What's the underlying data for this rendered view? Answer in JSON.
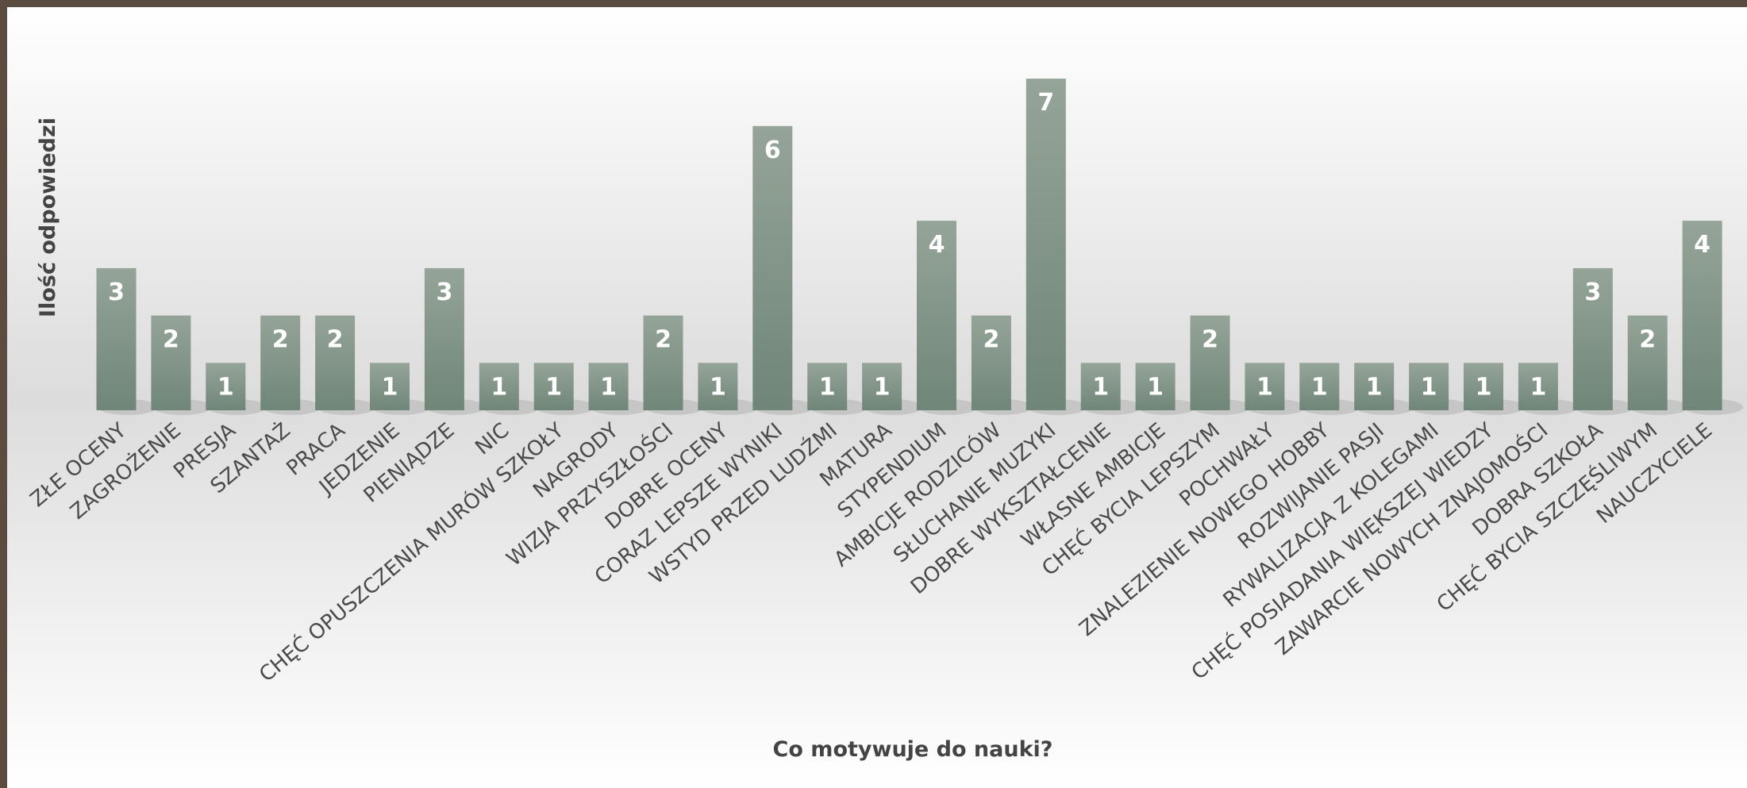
{
  "chart_data": {
    "type": "bar",
    "title": "",
    "xlabel": "Co motywuje do nauki?",
    "ylabel": "Ilość odpowiedzi",
    "ylim": [
      0,
      7
    ],
    "grid": false,
    "legend": "none",
    "colors": {
      "bar_top": "#95a498",
      "bar_bottom": "#6f8678",
      "label": "#ffffff",
      "text": "#4a4a4a"
    },
    "categories": [
      "ZŁE OCENY",
      "ZAGROŻENIE",
      "PRESJA",
      "SZANTAŻ",
      "PRACA",
      "JEDZENIE",
      "PIENIĄDZE",
      "NIC",
      "CHĘĆ OPUSZCZENIA MURÓW SZKOŁY",
      "NAGRODY",
      "WIZJA PRZYSZŁOŚCI",
      "DOBRE OCENY",
      "CORAZ LEPSZE WYNIKI",
      "WSTYD PRZED LUDŹMI",
      "MATURA",
      "STYPENDIUM",
      "AMBICJE RODZICÓW",
      "SŁUCHANIE MUZYKI",
      "DOBRE WYKSZTAŁCENIE",
      "WŁASNE AMBICJE",
      "CHĘĆ BYCIA LEPSZYM",
      "POCHWAŁY",
      "ZNALEZIENIE NOWEGO HOBBY",
      "ROZWIJANIE PASJI",
      "RYWALIZACJA Z KOLEGAMI",
      "CHĘĆ POSIADANIA WIĘKSZEJ WIEDZY",
      "ZAWARCIE NOWYCH ZNAJOMOŚCI",
      "DOBRA SZKOŁA",
      "CHĘĆ BYCIA SZCZĘŚLIWYM",
      "NAUCZYCIELE"
    ],
    "values": [
      3,
      2,
      1,
      2,
      2,
      1,
      3,
      1,
      1,
      1,
      2,
      1,
      6,
      1,
      1,
      4,
      2,
      7,
      1,
      1,
      2,
      1,
      1,
      1,
      1,
      1,
      1,
      3,
      2,
      4
    ]
  }
}
